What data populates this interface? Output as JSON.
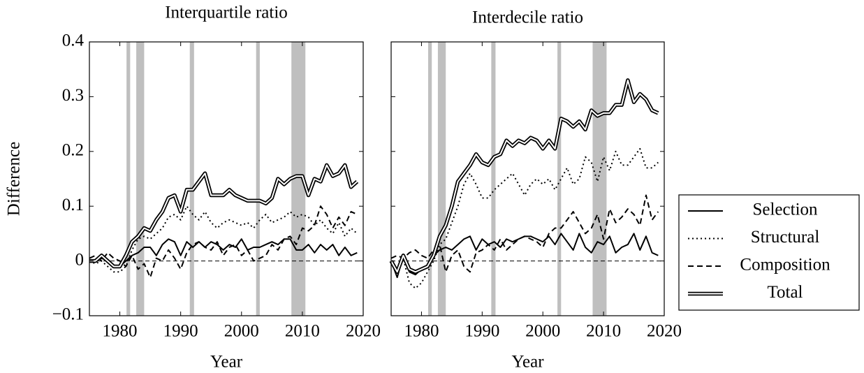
{
  "chart_data": [
    {
      "type": "line",
      "title": "Interquartile ratio",
      "xlabel": "Year",
      "ylabel": "Difference",
      "x": [
        1975,
        1976,
        1977,
        1978,
        1979,
        1980,
        1981,
        1982,
        1983,
        1984,
        1985,
        1986,
        1987,
        1988,
        1989,
        1990,
        1991,
        1992,
        1993,
        1994,
        1995,
        1996,
        1997,
        1998,
        1999,
        2000,
        2001,
        2002,
        2003,
        2004,
        2005,
        2006,
        2007,
        2008,
        2009,
        2010,
        2011,
        2012,
        2013,
        2014,
        2015,
        2016,
        2017,
        2018,
        2019
      ],
      "xlim": [
        1975,
        2020
      ],
      "xticks": [
        1980,
        1990,
        2000,
        2010,
        2020
      ],
      "ylim": [
        -0.1,
        0.4
      ],
      "yticks": [
        {
          "value": -0.1,
          "label": "−0.1"
        },
        0,
        0.1,
        0.2,
        0.3,
        0.4
      ],
      "reference_line": 0,
      "shaded": [
        [
          1981.1,
          1981.7
        ],
        [
          1982.7,
          1984.0
        ],
        [
          1991.5,
          1992.2
        ],
        [
          2002.4,
          2003.0
        ],
        [
          2008.2,
          2010.5
        ]
      ],
      "legend": "outside right",
      "series": [
        {
          "name": "Selection",
          "color": "#000000",
          "dash": "solid",
          "values": [
            0,
            0,
            0.005,
            0,
            -0.01,
            -0.01,
            0,
            0.01,
            0.015,
            0.025,
            0.025,
            0.01,
            0.03,
            0.04,
            0.035,
            0.01,
            0.035,
            0.025,
            0.035,
            0.025,
            0.035,
            0.03,
            0.02,
            0.03,
            0.025,
            0.04,
            0.02,
            0.025,
            0.025,
            0.03,
            0.035,
            0.03,
            0.04,
            0.04,
            0.02,
            0.02,
            0.03,
            0.015,
            0.03,
            0.02,
            0.03,
            0.01,
            0.025,
            0.01,
            0.015
          ]
        },
        {
          "name": "Structural",
          "color": "#000000",
          "dash": "dotted",
          "values": [
            0,
            -0.005,
            0,
            -0.01,
            -0.02,
            -0.02,
            -0.01,
            0.02,
            0.04,
            0.045,
            0.04,
            0.05,
            0.06,
            0.08,
            0.085,
            0.075,
            0.1,
            0.085,
            0.075,
            0.09,
            0.07,
            0.06,
            0.07,
            0.075,
            0.07,
            0.065,
            0.07,
            0.06,
            0.075,
            0.085,
            0.07,
            0.075,
            0.08,
            0.09,
            0.08,
            0.085,
            0.08,
            0.065,
            0.075,
            0.06,
            0.05,
            0.07,
            0.045,
            0.06,
            0.05
          ]
        },
        {
          "name": "Composition",
          "color": "#000000",
          "dash": "dashed",
          "values": [
            0.005,
            0.01,
            0,
            0.015,
            0.005,
            0,
            -0.01,
            0.01,
            -0.015,
            -0.005,
            -0.03,
            0.005,
            0,
            0.02,
            0.005,
            -0.015,
            0.015,
            0.03,
            0.035,
            0.025,
            0.02,
            0.035,
            0.01,
            0.025,
            0.03,
            0.01,
            0.02,
            0,
            0.005,
            0.01,
            0.03,
            0.02,
            0.04,
            0.045,
            0.03,
            0.06,
            0.055,
            0.065,
            0.1,
            0.085,
            0.06,
            0.08,
            0.065,
            0.09,
            0.085
          ]
        },
        {
          "name": "Total",
          "color": "#000000",
          "dash": "double",
          "values": [
            0,
            0,
            0.01,
            0,
            -0.01,
            -0.01,
            0.01,
            0.035,
            0.045,
            0.06,
            0.055,
            0.075,
            0.09,
            0.115,
            0.12,
            0.09,
            0.13,
            0.13,
            0.145,
            0.16,
            0.12,
            0.12,
            0.12,
            0.13,
            0.12,
            0.115,
            0.11,
            0.11,
            0.11,
            0.105,
            0.115,
            0.15,
            0.14,
            0.15,
            0.155,
            0.155,
            0.12,
            0.15,
            0.145,
            0.175,
            0.155,
            0.16,
            0.175,
            0.135,
            0.145
          ]
        }
      ]
    },
    {
      "type": "line",
      "title": "Interdecile ratio",
      "xlabel": "Year",
      "x": [
        1975,
        1976,
        1977,
        1978,
        1979,
        1980,
        1981,
        1982,
        1983,
        1984,
        1985,
        1986,
        1987,
        1988,
        1989,
        1990,
        1991,
        1992,
        1993,
        1994,
        1995,
        1996,
        1997,
        1998,
        1999,
        2000,
        2001,
        2002,
        2003,
        2004,
        2005,
        2006,
        2007,
        2008,
        2009,
        2010,
        2011,
        2012,
        2013,
        2014,
        2015,
        2016,
        2017,
        2018,
        2019
      ],
      "xlim": [
        1975,
        2020
      ],
      "xticks": [
        1980,
        1990,
        2000,
        2010,
        2020
      ],
      "ylim": [
        -0.1,
        0.4
      ],
      "yticks": [
        -0.1,
        0,
        0.1,
        0.2,
        0.3,
        0.4
      ],
      "reference_line": 0,
      "shaded": [
        [
          1981.1,
          1981.7
        ],
        [
          1982.7,
          1984.0
        ],
        [
          1991.5,
          1992.2
        ],
        [
          2002.4,
          2003.0
        ],
        [
          2008.2,
          2010.5
        ]
      ],
      "series": [
        {
          "color": "#000000",
          "dash": "solid",
          "values": [
            0,
            -0.03,
            0.01,
            -0.02,
            -0.025,
            -0.015,
            -0.01,
            0.01,
            0.02,
            0.025,
            0.02,
            0.03,
            0.04,
            0.045,
            0.02,
            0.04,
            0.03,
            0.035,
            0.025,
            0.04,
            0.035,
            0.04,
            0.045,
            0.045,
            0.04,
            0.035,
            0.045,
            0.03,
            0.05,
            0.035,
            0.02,
            0.05,
            0.025,
            0.015,
            0.035,
            0.03,
            0.045,
            0.015,
            0.025,
            0.03,
            0.05,
            0.02,
            0.045,
            0.015,
            0.01
          ]
        },
        {
          "color": "#000000",
          "dash": "dotted",
          "values": [
            0,
            -0.02,
            0.005,
            -0.04,
            -0.05,
            -0.04,
            -0.02,
            0,
            0.03,
            0.04,
            0.07,
            0.1,
            0.14,
            0.16,
            0.14,
            0.115,
            0.115,
            0.13,
            0.14,
            0.15,
            0.16,
            0.14,
            0.12,
            0.14,
            0.15,
            0.14,
            0.15,
            0.13,
            0.15,
            0.17,
            0.14,
            0.15,
            0.19,
            0.18,
            0.145,
            0.19,
            0.165,
            0.2,
            0.175,
            0.175,
            0.19,
            0.205,
            0.17,
            0.17,
            0.18
          ]
        },
        {
          "color": "#000000",
          "dash": "dashed",
          "values": [
            0.005,
            0.01,
            0.005,
            0.015,
            0.02,
            0.01,
            0.005,
            0.02,
            0.03,
            -0.02,
            0.01,
            0.02,
            -0.01,
            -0.02,
            0.015,
            0.02,
            0.03,
            0.02,
            0.04,
            0.02,
            0.03,
            0.04,
            0.045,
            0.04,
            0.035,
            0.025,
            0.05,
            0.06,
            0.06,
            0.075,
            0.09,
            0.07,
            0.05,
            0.06,
            0.085,
            0.04,
            0.095,
            0.07,
            0.08,
            0.095,
            0.085,
            0.065,
            0.12,
            0.075,
            0.09
          ]
        },
        {
          "color": "#000000",
          "dash": "double",
          "values": [
            0,
            -0.02,
            0.01,
            -0.015,
            -0.02,
            -0.015,
            -0.01,
            0.01,
            0.045,
            0.065,
            0.1,
            0.145,
            0.16,
            0.175,
            0.195,
            0.18,
            0.175,
            0.19,
            0.195,
            0.22,
            0.21,
            0.22,
            0.215,
            0.225,
            0.22,
            0.205,
            0.22,
            0.205,
            0.26,
            0.255,
            0.245,
            0.255,
            0.24,
            0.275,
            0.265,
            0.27,
            0.27,
            0.285,
            0.285,
            0.33,
            0.29,
            0.305,
            0.295,
            0.275,
            0.27
          ]
        }
      ]
    }
  ]
}
